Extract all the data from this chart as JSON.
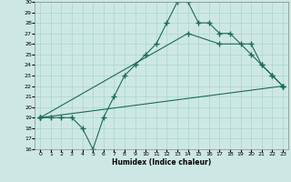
{
  "xlabel": "Humidex (Indice chaleur)",
  "bg_color": "#cde8e4",
  "line_color": "#1a6b5a",
  "grid_color": "#aad4cc",
  "xlim": [
    -0.5,
    23.5
  ],
  "ylim": [
    16,
    30
  ],
  "xticks": [
    0,
    1,
    2,
    3,
    4,
    5,
    6,
    7,
    8,
    9,
    10,
    11,
    12,
    13,
    14,
    15,
    16,
    17,
    18,
    19,
    20,
    21,
    22,
    23
  ],
  "yticks": [
    16,
    17,
    18,
    19,
    20,
    21,
    22,
    23,
    24,
    25,
    26,
    27,
    28,
    29,
    30
  ],
  "line1_x": [
    0,
    1,
    2,
    3,
    4,
    5,
    6,
    7,
    8,
    9,
    10,
    11,
    12,
    13,
    14,
    15,
    16,
    17,
    18,
    19,
    20,
    21,
    22,
    23
  ],
  "line1_y": [
    19,
    19,
    19,
    19,
    18,
    16,
    19,
    21,
    23,
    24,
    25,
    26,
    28,
    30,
    30,
    28,
    28,
    27,
    27,
    26,
    25,
    24,
    23,
    22
  ],
  "line2_x": [
    0,
    23
  ],
  "line2_y": [
    19,
    22
  ],
  "line3_x": [
    0,
    14,
    17,
    20,
    21,
    22,
    23
  ],
  "line3_y": [
    19,
    27,
    26,
    26,
    24,
    23,
    22
  ]
}
